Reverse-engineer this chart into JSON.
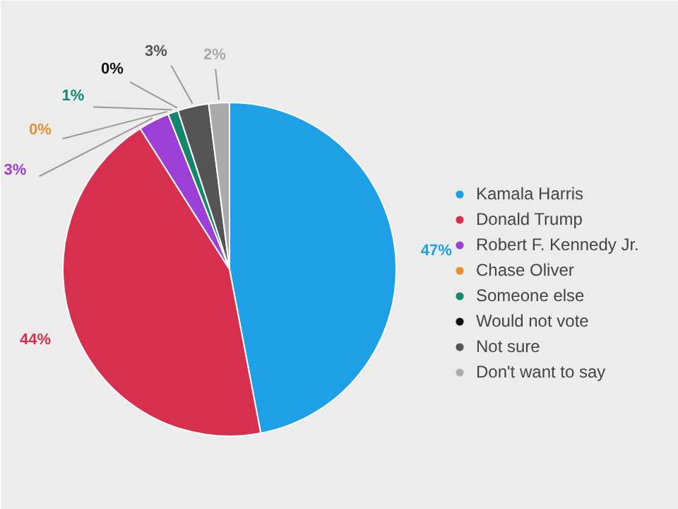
{
  "chart_data": {
    "type": "pie",
    "categories": [
      "Kamala Harris",
      "Donald Trump",
      "Robert F. Kennedy Jr.",
      "Chase Oliver",
      "Someone else",
      "Would not vote",
      "Not sure",
      "Don't want to say"
    ],
    "values": [
      47,
      44,
      3,
      0,
      1,
      0,
      3,
      2
    ],
    "colors": [
      "#1ea0e6",
      "#d6304e",
      "#9b3fd6",
      "#e8902e",
      "#12876e",
      "#111111",
      "#555555",
      "#aaaaaa"
    ],
    "value_labels": [
      "47%",
      "44%",
      "3%",
      "0%",
      "1%",
      "0%",
      "3%",
      "2%"
    ],
    "legend": "right"
  }
}
